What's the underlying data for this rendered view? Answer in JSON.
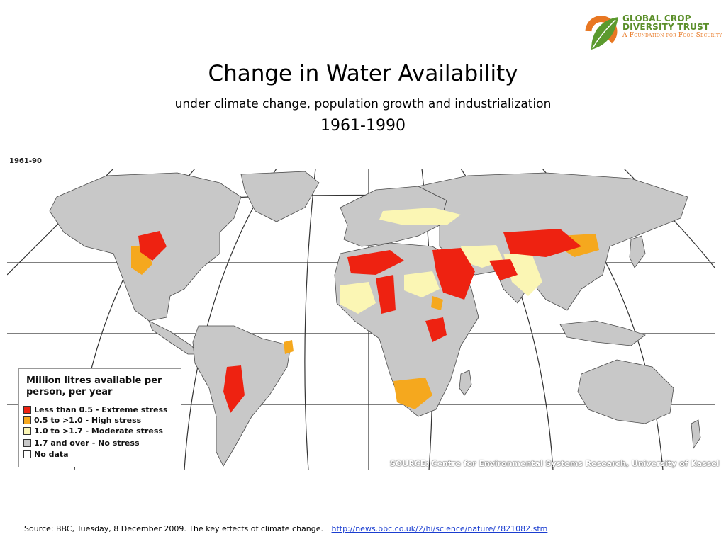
{
  "logo": {
    "line1": "GLOBAL CROP",
    "line2": "DIVERSITY TRUST",
    "line3": "A Foundation for Food Security"
  },
  "title": "Change in Water Availability",
  "subtitle": "under climate change, population growth and industrialization",
  "years": "1961-1990",
  "map": {
    "corner_label": "1961-90",
    "source_note": "SOURCE: Centre for Environmental Systems Research, University of Kassel",
    "colors": {
      "extreme": "#ee2211",
      "high": "#f5a81e",
      "moderate": "#fbf6b4",
      "none": "#c8c8c8",
      "nodata": "#ffffff"
    }
  },
  "legend": {
    "title_line1": "Million litres available per",
    "title_line2": "person, per year",
    "items": [
      {
        "label": "Less than 0.5 - Extreme stress",
        "color": "#ee2211"
      },
      {
        "label": "0.5 to >1.0 - High stress",
        "color": "#f5a81e"
      },
      {
        "label": "1.0 to >1.7 - Moderate stress",
        "color": "#fbf6b4"
      },
      {
        "label": "1.7 and over - No stress",
        "color": "#c8c8c8"
      },
      {
        "label": "No data",
        "color": "#ffffff"
      }
    ]
  },
  "footer": {
    "source_text": "Source:  BBC, Tuesday, 8 December 2009. The key effects of climate change.",
    "link_text": "http://news.bbc.co.uk/2/hi/science/nature/7821082.stm"
  }
}
